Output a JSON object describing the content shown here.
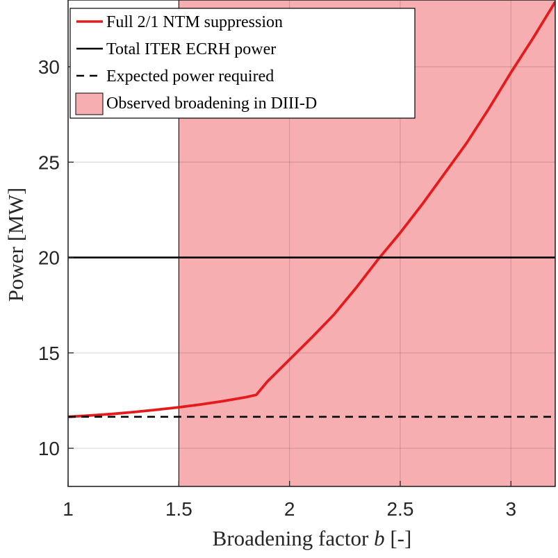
{
  "chart_data": {
    "type": "line",
    "xlabel": "Broadening factor",
    "xlabel_var": "b",
    "xlabel_unit": "[-]",
    "ylabel": "Power [MW]",
    "xlim": [
      1,
      3.2
    ],
    "ylim": [
      8,
      33.5
    ],
    "xticks": [
      1,
      1.5,
      2,
      2.5,
      3
    ],
    "xtick_labels": [
      "1",
      "1.5",
      "2",
      "2.5",
      "3"
    ],
    "yticks": [
      10,
      15,
      20,
      25,
      30
    ],
    "ytick_labels": [
      "10",
      "15",
      "20",
      "25",
      "30"
    ],
    "grid": true,
    "legend_position": "top-left",
    "colors": {
      "curve": "#e41a1c",
      "shade": "#f7aeb1",
      "line": "#000000"
    },
    "shaded_region": {
      "name": "Observed broadening in DIII-D",
      "x_from": 1.5,
      "x_to": 3.2
    },
    "series": [
      {
        "name": "Full 2/1 NTM suppression",
        "style": "solid",
        "color": "#e41a1c",
        "x": [
          1.0,
          1.1,
          1.2,
          1.3,
          1.4,
          1.5,
          1.6,
          1.7,
          1.8,
          1.85,
          1.9,
          2.0,
          2.1,
          2.2,
          2.3,
          2.4,
          2.5,
          2.6,
          2.7,
          2.8,
          2.9,
          3.0,
          3.1,
          3.2
        ],
        "y": [
          11.65,
          11.72,
          11.8,
          11.9,
          12.02,
          12.15,
          12.3,
          12.47,
          12.67,
          12.8,
          13.5,
          14.65,
          15.8,
          17.0,
          18.4,
          19.9,
          21.3,
          22.8,
          24.4,
          26.0,
          27.8,
          29.7,
          31.5,
          33.4
        ]
      },
      {
        "name": "Total ITER ECRH power",
        "style": "solid",
        "color": "#000000",
        "x": [
          1,
          3.2
        ],
        "y": [
          20,
          20
        ]
      },
      {
        "name": "Expected power required",
        "style": "dashed",
        "color": "#000000",
        "x": [
          1,
          3.2
        ],
        "y": [
          11.65,
          11.65
        ]
      }
    ]
  }
}
